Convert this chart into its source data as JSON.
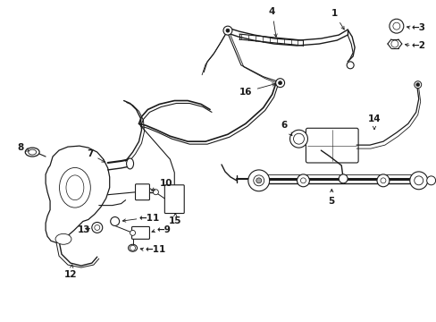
{
  "background_color": "#ffffff",
  "line_color": "#1a1a1a",
  "text_color": "#000000",
  "fig_width": 4.89,
  "fig_height": 3.6,
  "dpi": 100,
  "font_size": 7.5,
  "font_size_sm": 6.5
}
